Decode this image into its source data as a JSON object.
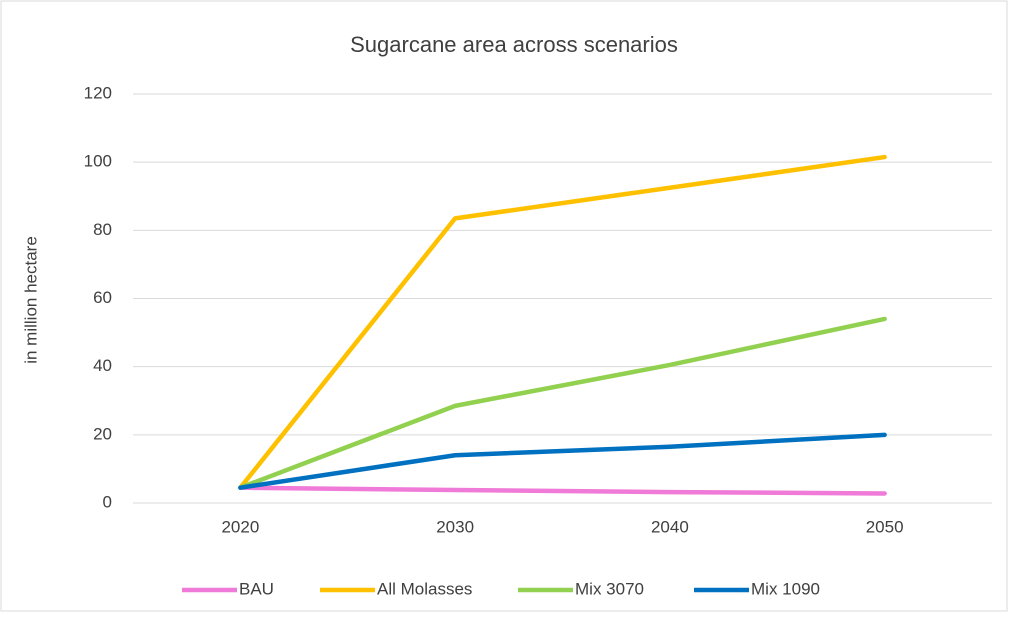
{
  "chart_data": {
    "type": "line",
    "title": "Sugarcane area across scenarios",
    "y_label": "in million hectare",
    "categories": [
      "2020",
      "2030",
      "2040",
      "2050"
    ],
    "series": [
      {
        "name": "BAU",
        "color": "#f07ad8",
        "values": [
          4.5,
          3.8,
          3.2,
          2.8
        ]
      },
      {
        "name": "All Molasses",
        "color": "#ffc000",
        "values": [
          4.5,
          83.5,
          92.5,
          101.5
        ]
      },
      {
        "name": "Mix 3070",
        "color": "#92d050",
        "values": [
          4.5,
          28.5,
          40.5,
          54
        ]
      },
      {
        "name": "Mix 1090",
        "color": "#0070c0",
        "values": [
          4.5,
          14,
          16.5,
          20
        ]
      }
    ],
    "ylim": [
      0,
      120
    ],
    "yticks": [
      0,
      20,
      40,
      60,
      80,
      100,
      120
    ],
    "grid": true,
    "legend": "bottom"
  }
}
